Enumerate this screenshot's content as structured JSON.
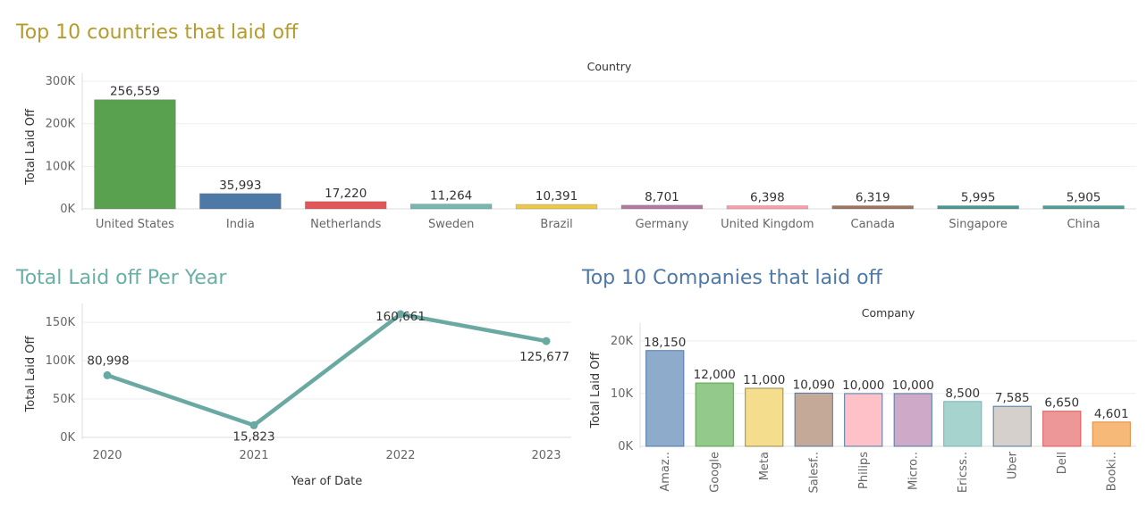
{
  "titles": {
    "countries": "Top 10 countries that laid off",
    "per_year": "Total Laid off Per Year",
    "companies": "Top 10 Companies that laid off"
  },
  "colors": {
    "countries_title": "#b59b2a",
    "per_year_title": "#6aafa6",
    "companies_title": "#4e79a7",
    "line": "#6aa9a2"
  },
  "chart_data": [
    {
      "id": "countries",
      "type": "bar",
      "header": "Country",
      "ylabel": "Total Laid Off",
      "ylim": [
        0,
        300000
      ],
      "yticks": [
        "0K",
        "100K",
        "200K",
        "300K"
      ],
      "categories": [
        "United States",
        "India",
        "Netherlands",
        "Sweden",
        "Brazil",
        "Germany",
        "United Kingdom",
        "Canada",
        "Singapore",
        "China"
      ],
      "values": [
        256559,
        35993,
        17220,
        11264,
        10391,
        8701,
        6398,
        6319,
        5995,
        5905
      ],
      "labels": [
        "256,559",
        "35,993",
        "17,220",
        "11,264",
        "10,391",
        "8,701",
        "6,398",
        "6,319",
        "5,995",
        "5,905"
      ],
      "colors": [
        "#59a14f",
        "#4e79a7",
        "#e15759",
        "#76b7b2",
        "#edc948",
        "#b07aa1",
        "#ff9da7",
        "#9c755f",
        "#499894",
        "#4e9f9a"
      ]
    },
    {
      "id": "per_year",
      "type": "line",
      "xlabel": "Year of Date",
      "ylabel": "Total Laid Off",
      "ylim": [
        0,
        170000
      ],
      "yticks": [
        "0K",
        "50K",
        "100K",
        "150K"
      ],
      "x": [
        "2020",
        "2021",
        "2022",
        "2023"
      ],
      "values": [
        80998,
        15823,
        160661,
        125677
      ],
      "labels": [
        "80,998",
        "15,823",
        "160,661",
        "125,677"
      ]
    },
    {
      "id": "companies",
      "type": "bar",
      "header": "Company",
      "ylabel": "Total Laid Off",
      "ylim": [
        0,
        22000
      ],
      "yticks": [
        "0K",
        "10K",
        "20K"
      ],
      "categories": [
        "Amaz..",
        "Google",
        "Meta",
        "Salesf..",
        "Philips",
        "Micro..",
        "Ericss..",
        "Uber",
        "Dell",
        "Booki.."
      ],
      "values": [
        18150,
        12000,
        11000,
        10090,
        10000,
        10000,
        8500,
        7585,
        6650,
        4601
      ],
      "labels": [
        "18,150",
        "12,000",
        "11,000",
        "10,090",
        "10,000",
        "10,000",
        "8,500",
        "7,585",
        "6,650",
        "4,601"
      ],
      "colors": [
        "#8fabcb",
        "#94c98c",
        "#f4dd8c",
        "#c4a898",
        "#ffc1c8",
        "#cfaac8",
        "#a7d3cf",
        "#d5d0cb",
        "#ed9799",
        "#f7b978"
      ],
      "edges": [
        "#4e79a7",
        "#59a14f",
        "#9a8a50",
        "#4e79a7",
        "#4e79a7",
        "#4e79a7",
        "#76b7b2",
        "#4e79a7",
        "#e15759",
        "#e08a3c"
      ]
    }
  ]
}
